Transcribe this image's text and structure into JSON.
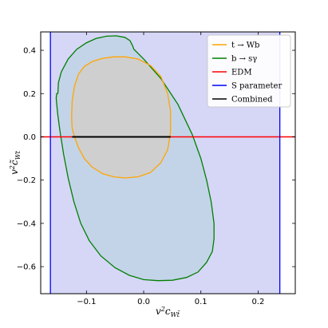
{
  "chart_data": {
    "type": "line",
    "title": "",
    "xlabel": "v²c_Wt̃",
    "ylabel": "v²c̃_Wt",
    "xlim": [
      -0.18,
      0.265
    ],
    "ylim": [
      -0.725,
      0.485
    ],
    "grid": false,
    "legend_position": "top-right",
    "x_ticks": [
      -0.1,
      0.0,
      0.1,
      0.2
    ],
    "x_tick_labels": [
      "−0.1",
      "0.0",
      "0.1",
      "0.2"
    ],
    "y_ticks": [
      0.4,
      0.2,
      0.0,
      -0.2,
      -0.4,
      -0.6
    ],
    "y_tick_labels": [
      "0.4",
      "0.2",
      "0.0",
      "−0.2",
      "−0.4",
      "−0.6"
    ],
    "colors": {
      "t_to_Wb": "#ffa500",
      "b_to_sgamma": "#007f00",
      "EDM": "#ff0000",
      "S_parameter": "#0000ff",
      "Combined": "#000000",
      "band_fill": "#d6d6f7",
      "region_fill": "#c3d4e8",
      "inner_fill": "#cfcfcf"
    },
    "series": [
      {
        "name": "t → Wb",
        "kind": "closed_contour",
        "x": [
          -0.126,
          -0.125,
          -0.121,
          -0.114,
          -0.104,
          -0.09,
          -0.072,
          -0.052,
          -0.033,
          -0.01,
          0.012,
          0.03,
          0.042,
          0.047,
          0.047,
          0.042,
          0.03,
          0.012,
          -0.01,
          -0.033,
          -0.052,
          -0.072,
          -0.09,
          -0.104,
          -0.114,
          -0.121,
          -0.125,
          -0.126
        ],
        "y": [
          0.09,
          0.165,
          0.235,
          0.29,
          0.325,
          0.348,
          0.363,
          0.37,
          0.37,
          0.36,
          0.33,
          0.28,
          0.2,
          0.12,
          0.02,
          -0.06,
          -0.12,
          -0.165,
          -0.185,
          -0.19,
          -0.185,
          -0.17,
          -0.14,
          -0.1,
          -0.05,
          0.0,
          0.04,
          0.09
        ]
      },
      {
        "name": "b → sγ",
        "kind": "closed_contour",
        "x": [
          -0.15,
          -0.149,
          -0.144,
          -0.132,
          -0.117,
          -0.1,
          -0.083,
          -0.065,
          -0.048,
          -0.033,
          -0.024,
          -0.02,
          -0.017,
          0.0,
          0.03,
          0.06,
          0.085,
          0.1,
          0.11,
          0.118,
          0.123,
          0.123,
          0.12,
          0.11,
          0.095,
          0.075,
          0.05,
          0.025,
          0.0,
          -0.025,
          -0.05,
          -0.075,
          -0.095,
          -0.11,
          -0.122,
          -0.132,
          -0.14,
          -0.146,
          -0.15,
          -0.152,
          -0.153,
          -0.152,
          -0.15
        ],
        "y": [
          0.2,
          0.25,
          0.3,
          0.36,
          0.405,
          0.435,
          0.455,
          0.465,
          0.467,
          0.46,
          0.445,
          0.425,
          0.405,
          0.36,
          0.27,
          0.15,
          0.01,
          -0.1,
          -0.2,
          -0.3,
          -0.4,
          -0.47,
          -0.53,
          -0.58,
          -0.625,
          -0.65,
          -0.663,
          -0.665,
          -0.66,
          -0.64,
          -0.605,
          -0.55,
          -0.48,
          -0.4,
          -0.3,
          -0.19,
          -0.08,
          0.02,
          0.1,
          0.15,
          0.18,
          0.2,
          0.2
        ]
      },
      {
        "name": "EDM",
        "kind": "horizontal_line",
        "x": [
          -0.18,
          0.265
        ],
        "y": [
          0.0,
          0.0
        ]
      },
      {
        "name": "S parameter",
        "kind": "vertical_lines",
        "x": [
          -0.163,
          0.238
        ],
        "y": [
          -0.725,
          0.485
        ]
      },
      {
        "name": "Combined",
        "kind": "segment",
        "x": [
          -0.125,
          0.047
        ],
        "y": [
          0.0,
          0.0
        ]
      }
    ],
    "legend": [
      "t → Wb",
      "b → sγ",
      "EDM",
      "S parameter",
      "Combined"
    ]
  }
}
